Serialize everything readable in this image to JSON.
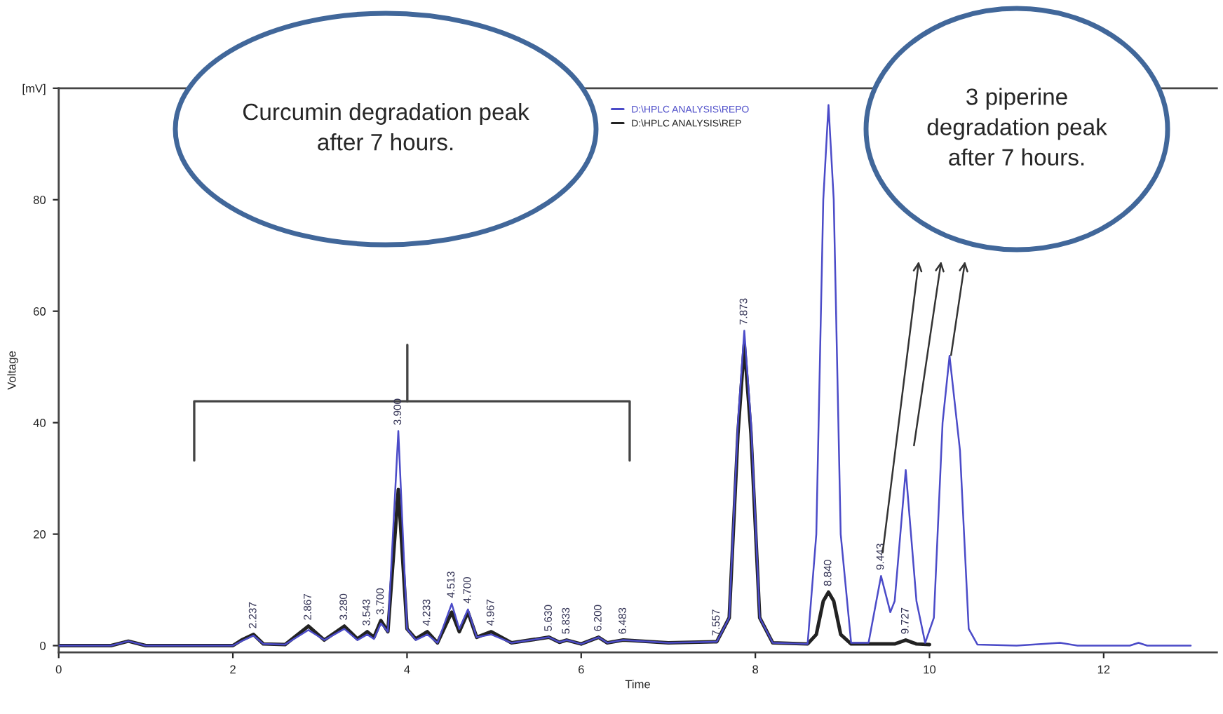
{
  "chart_data": {
    "type": "line",
    "xlabel": "Time",
    "ylabel": "Voltage",
    "xlim": [
      0,
      13.3
    ],
    "xticks": [
      0,
      2,
      4,
      6,
      8,
      10,
      12
    ],
    "ylim": [
      -1.2,
      100
    ],
    "yticks": [
      0,
      20,
      40,
      60,
      80,
      {
        "value": 100,
        "label": "[mV]"
      }
    ],
    "grid": false,
    "legend": "top",
    "marker": "none",
    "line_style": "solid",
    "series": [
      {
        "name": "D:\\HPLC ANALYSIS\\REPO",
        "color": "#4b4bc8",
        "x": [
          0,
          0.6,
          0.8,
          1.0,
          2.0,
          2.1,
          2.237,
          2.35,
          2.6,
          2.867,
          3.05,
          3.28,
          3.43,
          3.543,
          3.62,
          3.7,
          3.78,
          3.9,
          4.0,
          4.1,
          4.233,
          4.35,
          4.513,
          4.6,
          4.7,
          4.8,
          4.967,
          5.2,
          5.63,
          5.75,
          5.833,
          6.0,
          6.2,
          6.3,
          6.483,
          7.0,
          7.557,
          7.7,
          7.8,
          7.873,
          7.95,
          8.05,
          8.2,
          8.6,
          8.7,
          8.78,
          8.84,
          8.9,
          8.98,
          9.1,
          9.3,
          9.443,
          9.55,
          9.6,
          9.727,
          9.85,
          9.95,
          10.05,
          10.15,
          10.23,
          10.35,
          10.45,
          10.55,
          11.0,
          11.5,
          11.7,
          12.3,
          12.4,
          12.5,
          13.0
        ],
        "values": [
          0,
          0,
          0.8,
          0,
          0,
          0.8,
          1.8,
          0.3,
          0.2,
          2.8,
          1.0,
          3.0,
          1.0,
          2.0,
          1.2,
          4.0,
          2.5,
          38.5,
          3,
          1.0,
          2.0,
          0.5,
          7.5,
          3.0,
          6.5,
          1.5,
          2.0,
          0.5,
          1.5,
          0.6,
          1.0,
          0.3,
          1.5,
          0.5,
          1.0,
          0.5,
          0.7,
          5,
          40,
          56.5,
          40,
          5,
          0.5,
          0.3,
          20,
          80,
          97,
          80,
          20,
          0.5,
          0.5,
          12.5,
          6,
          8,
          31.5,
          8,
          0.5,
          5,
          40,
          52,
          35,
          3,
          0.2,
          0,
          0.5,
          0,
          0,
          0.5,
          0,
          0
        ]
      },
      {
        "name": "D:\\HPLC ANALYSIS\\REP",
        "color": "#222222",
        "x": [
          0,
          0.6,
          0.8,
          1.0,
          2.0,
          2.1,
          2.237,
          2.35,
          2.6,
          2.867,
          3.05,
          3.28,
          3.43,
          3.543,
          3.62,
          3.7,
          3.78,
          3.9,
          4.0,
          4.1,
          4.233,
          4.35,
          4.513,
          4.6,
          4.7,
          4.8,
          4.967,
          5.2,
          5.63,
          5.75,
          5.833,
          6.0,
          6.2,
          6.3,
          6.483,
          7.0,
          7.557,
          7.7,
          7.8,
          7.873,
          7.95,
          8.05,
          8.2,
          8.6,
          8.7,
          8.78,
          8.84,
          8.9,
          8.98,
          9.1,
          9.443,
          9.6,
          9.727,
          9.85,
          10.0
        ],
        "values": [
          0,
          0,
          0.8,
          0,
          0,
          1.0,
          2.0,
          0.3,
          0.2,
          3.5,
          1.0,
          3.5,
          1.2,
          2.5,
          1.5,
          4.5,
          2.5,
          28,
          3,
          1.2,
          2.5,
          0.5,
          6,
          2.5,
          6,
          1.5,
          2.5,
          0.5,
          1.5,
          0.6,
          1.0,
          0.3,
          1.5,
          0.5,
          1.0,
          0.5,
          0.7,
          5,
          38,
          54,
          38,
          5,
          0.5,
          0.3,
          2,
          8,
          9.6,
          8,
          2,
          0.3,
          0.3,
          0.3,
          1.0,
          0.3,
          0.2
        ]
      }
    ],
    "annotations": [
      "Curcumin degradation peak\nafter 7 hours.",
      "3 piperine\ndegradation peak\nafter 7 hours.",
      {
        "text": "2.237",
        "x": 2.237,
        "y": 2
      },
      {
        "text": "2.867",
        "x": 2.867,
        "y": 3.5
      },
      {
        "text": "3.280",
        "x": 3.28,
        "y": 3.5
      },
      {
        "text": "3.543",
        "x": 3.543,
        "y": 2.5
      },
      {
        "text": "3.700",
        "x": 3.7,
        "y": 4.5
      },
      {
        "text": "3.900",
        "x": 3.9,
        "y": 38.5
      },
      {
        "text": "4.233",
        "x": 4.233,
        "y": 2.5
      },
      {
        "text": "4.513",
        "x": 4.513,
        "y": 7.5
      },
      {
        "text": "4.700",
        "x": 4.7,
        "y": 6.5
      },
      {
        "text": "4.967",
        "x": 4.967,
        "y": 2.5
      },
      {
        "text": "5.630",
        "x": 5.63,
        "y": 1.5
      },
      {
        "text": "5.833",
        "x": 5.833,
        "y": 1.0
      },
      {
        "text": "6.200",
        "x": 6.2,
        "y": 1.5
      },
      {
        "text": "6.483",
        "x": 6.483,
        "y": 1.0
      },
      {
        "text": "7.557",
        "x": 7.557,
        "y": 0.7
      },
      {
        "text": "7.873",
        "x": 7.873,
        "y": 56.5
      },
      {
        "text": "8.840",
        "x": 8.84,
        "y": 9.6
      },
      {
        "text": "9.443",
        "x": 9.443,
        "y": 12.5
      },
      {
        "text": "9.727",
        "x": 9.727,
        "y": 1.0
      }
    ]
  }
}
